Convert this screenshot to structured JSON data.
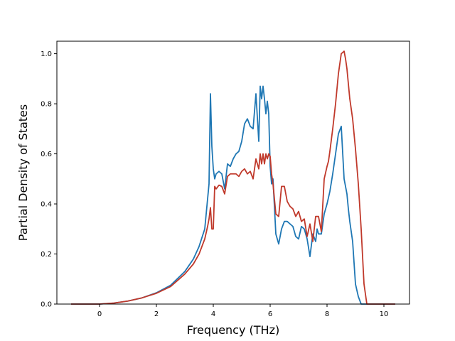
{
  "chart_data": {
    "type": "line",
    "title": "",
    "xlabel": "Frequency (THz)",
    "ylabel": "Partial Density of States",
    "xlim": [
      -1.5,
      10.9
    ],
    "ylim": [
      0.0,
      1.05
    ],
    "xticks": [
      0,
      2,
      4,
      6,
      8,
      10
    ],
    "xtick_labels": [
      "0",
      "2",
      "4",
      "6",
      "8",
      "10"
    ],
    "yticks": [
      0.0,
      0.2,
      0.4,
      0.6,
      0.8,
      1.0
    ],
    "ytick_labels": [
      "0.0",
      "0.2",
      "0.4",
      "0.6",
      "0.8",
      "1.0"
    ],
    "grid": false,
    "legend": "none",
    "series": [
      {
        "color": "#1f77b4",
        "x": [
          -1.0,
          0.0,
          0.5,
          1.0,
          1.5,
          2.0,
          2.5,
          3.0,
          3.3,
          3.5,
          3.7,
          3.85,
          3.9,
          3.95,
          4.0,
          4.05,
          4.1,
          4.2,
          4.3,
          4.4,
          4.5,
          4.6,
          4.7,
          4.8,
          4.9,
          5.0,
          5.1,
          5.2,
          5.3,
          5.4,
          5.5,
          5.6,
          5.65,
          5.7,
          5.75,
          5.8,
          5.85,
          5.9,
          5.95,
          6.0,
          6.05,
          6.1,
          6.2,
          6.3,
          6.4,
          6.5,
          6.6,
          6.7,
          6.8,
          6.9,
          7.0,
          7.1,
          7.2,
          7.3,
          7.4,
          7.5,
          7.6,
          7.65,
          7.7,
          7.8,
          7.9,
          8.0,
          8.1,
          8.2,
          8.3,
          8.4,
          8.5,
          8.6,
          8.7,
          8.75,
          8.8,
          8.9,
          9.0,
          9.1,
          9.2,
          9.3,
          9.4,
          9.45,
          9.5,
          9.6,
          10.0,
          10.4
        ],
        "y": [
          0.0,
          0.0,
          0.004,
          0.012,
          0.025,
          0.045,
          0.075,
          0.13,
          0.18,
          0.23,
          0.3,
          0.48,
          0.84,
          0.63,
          0.54,
          0.5,
          0.52,
          0.53,
          0.52,
          0.46,
          0.56,
          0.55,
          0.58,
          0.6,
          0.61,
          0.65,
          0.72,
          0.74,
          0.71,
          0.7,
          0.84,
          0.65,
          0.87,
          0.82,
          0.87,
          0.82,
          0.76,
          0.81,
          0.76,
          0.55,
          0.48,
          0.5,
          0.28,
          0.24,
          0.3,
          0.33,
          0.33,
          0.32,
          0.31,
          0.27,
          0.26,
          0.31,
          0.3,
          0.26,
          0.19,
          0.28,
          0.25,
          0.3,
          0.28,
          0.28,
          0.36,
          0.4,
          0.45,
          0.52,
          0.6,
          0.68,
          0.71,
          0.5,
          0.44,
          0.38,
          0.33,
          0.25,
          0.08,
          0.03,
          0.0,
          0.0,
          0.0,
          0.0,
          0.0,
          0.0,
          0.0,
          0.0
        ]
      },
      {
        "color": "#c0392b",
        "x": [
          -1.0,
          0.0,
          0.5,
          1.0,
          1.5,
          2.0,
          2.5,
          3.0,
          3.3,
          3.5,
          3.7,
          3.8,
          3.85,
          3.9,
          3.95,
          4.0,
          4.05,
          4.1,
          4.2,
          4.3,
          4.4,
          4.5,
          4.6,
          4.7,
          4.8,
          4.9,
          5.0,
          5.1,
          5.2,
          5.3,
          5.4,
          5.5,
          5.6,
          5.65,
          5.7,
          5.75,
          5.8,
          5.85,
          5.9,
          5.95,
          6.0,
          6.05,
          6.1,
          6.2,
          6.3,
          6.4,
          6.5,
          6.6,
          6.7,
          6.8,
          6.9,
          7.0,
          7.1,
          7.2,
          7.3,
          7.4,
          7.5,
          7.6,
          7.7,
          7.8,
          7.9,
          8.0,
          8.05,
          8.1,
          8.2,
          8.3,
          8.4,
          8.5,
          8.6,
          8.65,
          8.7,
          8.75,
          8.8,
          8.9,
          9.0,
          9.1,
          9.2,
          9.3,
          9.4,
          9.5,
          10.0,
          10.4
        ],
        "y": [
          0.0,
          0.0,
          0.004,
          0.012,
          0.025,
          0.043,
          0.07,
          0.12,
          0.16,
          0.2,
          0.26,
          0.31,
          0.34,
          0.385,
          0.3,
          0.3,
          0.47,
          0.46,
          0.475,
          0.47,
          0.44,
          0.51,
          0.52,
          0.52,
          0.52,
          0.51,
          0.53,
          0.54,
          0.52,
          0.53,
          0.5,
          0.58,
          0.54,
          0.6,
          0.56,
          0.6,
          0.56,
          0.6,
          0.58,
          0.6,
          0.59,
          0.52,
          0.48,
          0.36,
          0.35,
          0.47,
          0.47,
          0.41,
          0.39,
          0.38,
          0.35,
          0.37,
          0.33,
          0.34,
          0.27,
          0.32,
          0.25,
          0.35,
          0.35,
          0.29,
          0.5,
          0.55,
          0.57,
          0.61,
          0.7,
          0.8,
          0.92,
          1.0,
          1.01,
          0.98,
          0.94,
          0.88,
          0.82,
          0.74,
          0.62,
          0.48,
          0.3,
          0.08,
          0.0,
          0.0,
          0.0,
          0.0
        ]
      }
    ]
  }
}
